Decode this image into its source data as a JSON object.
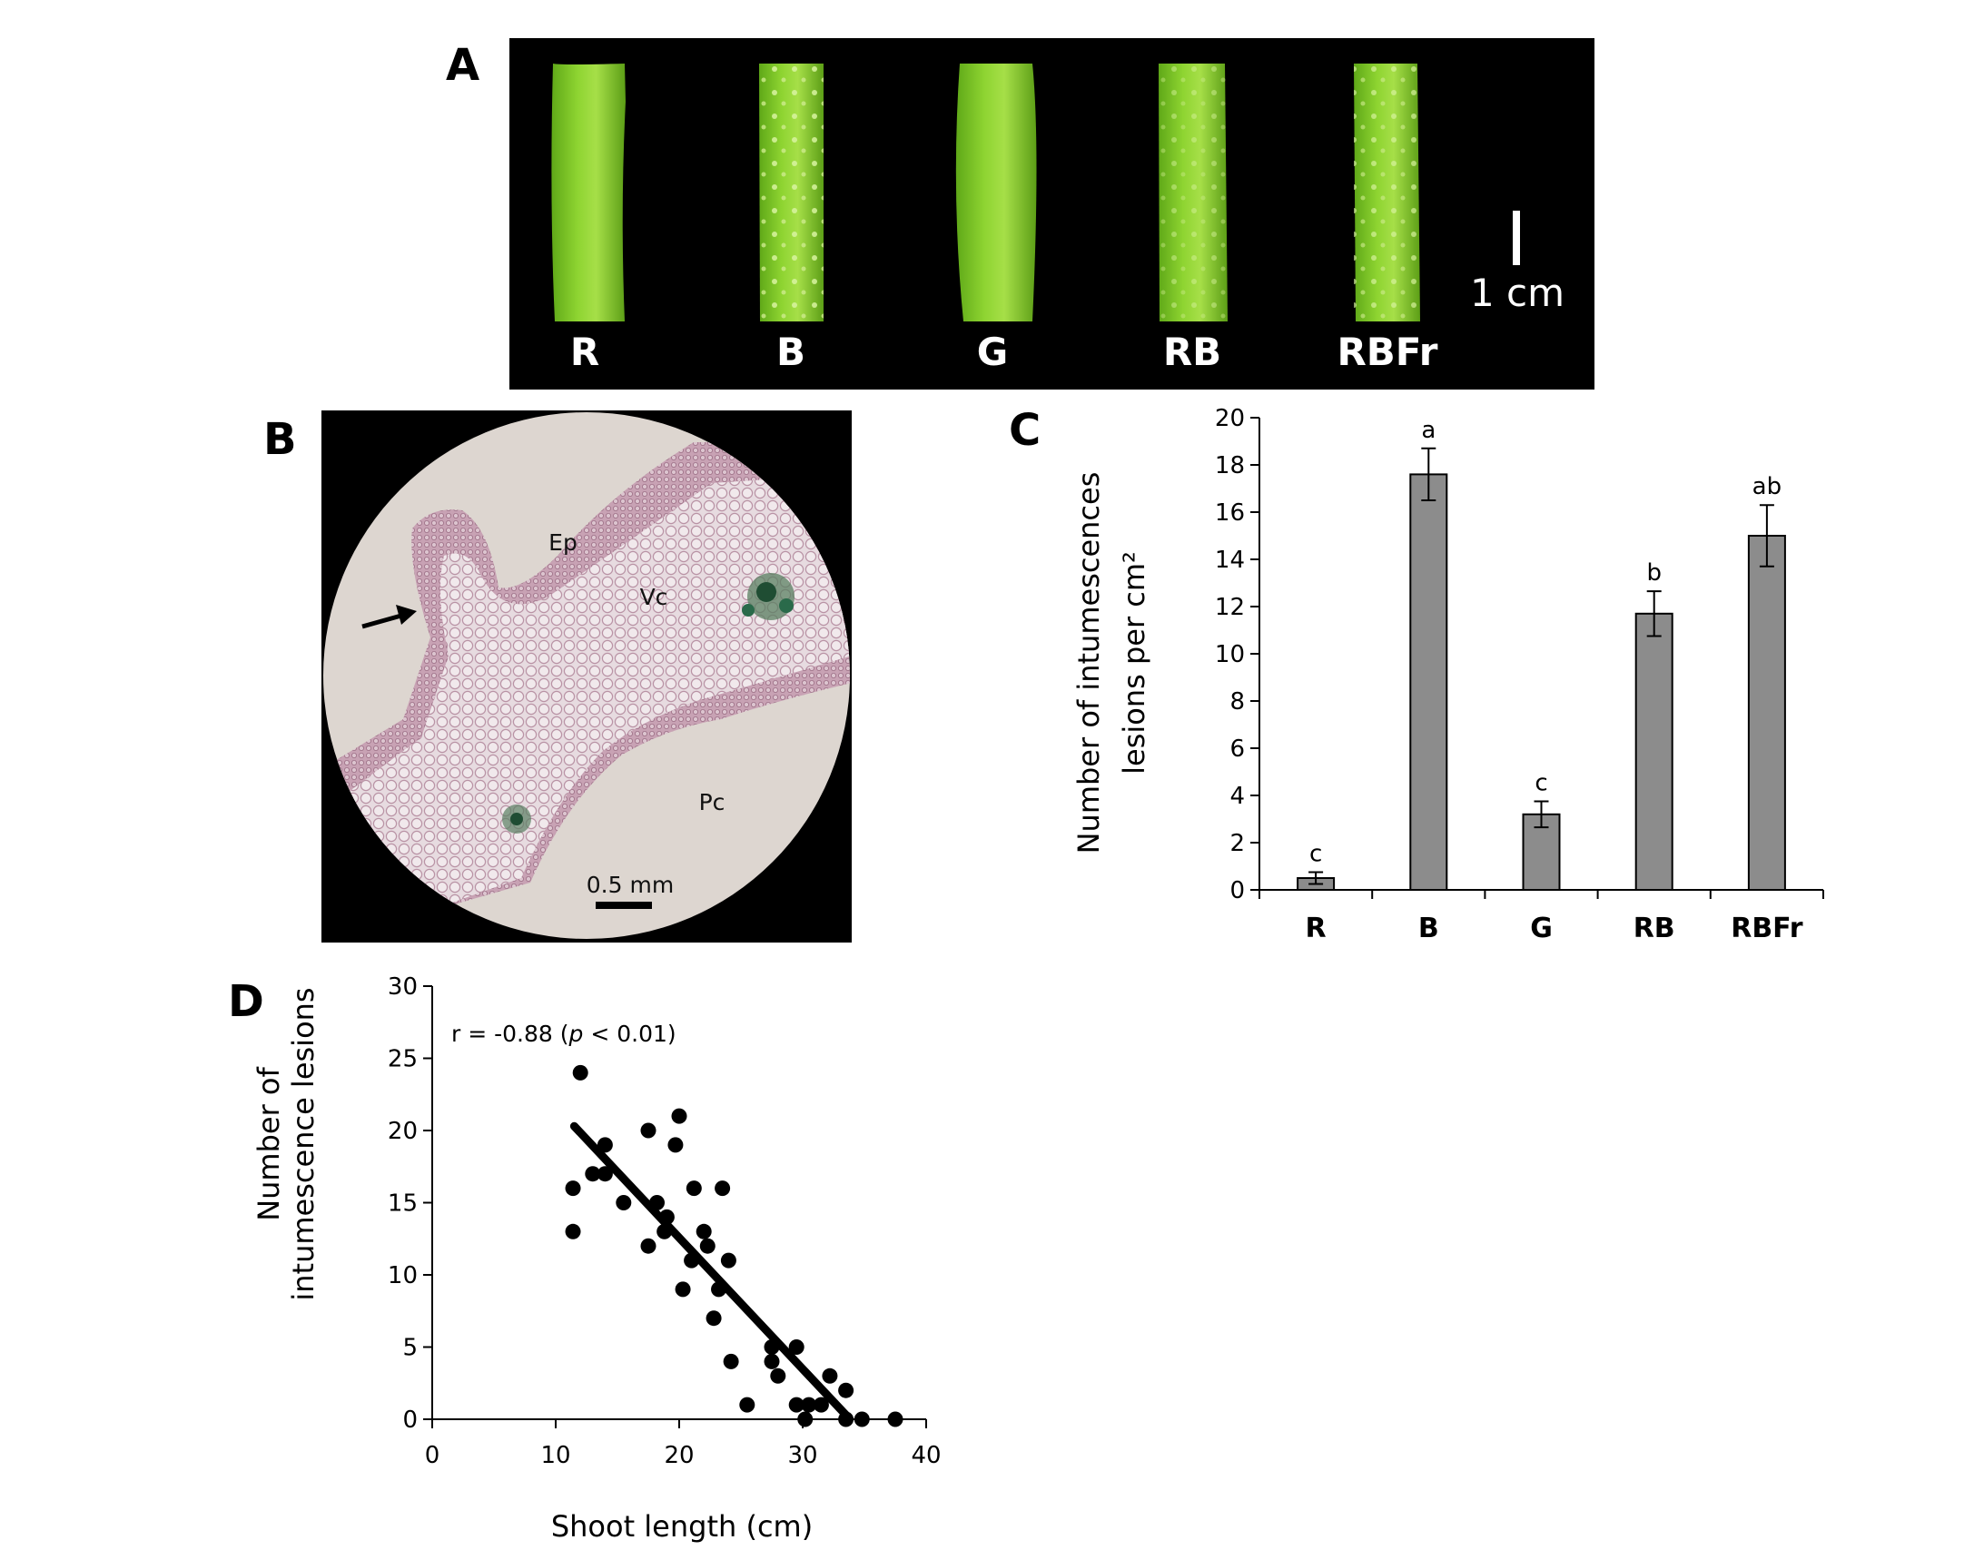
{
  "panels": {
    "a": "A",
    "b": "B",
    "c": "C",
    "d": "D"
  },
  "panel_a": {
    "stem_labels": [
      "R",
      "B",
      "G",
      "RB",
      "RBFr"
    ],
    "scale_bar": "1 cm",
    "colors": {
      "background": "#000000",
      "stem": "#86cc2c",
      "stem_light": "#a8dc4a"
    }
  },
  "panel_b": {
    "labels": [
      "Ep",
      "Vc",
      "Pc"
    ],
    "scale_bar": "0.5 mm",
    "colors": {
      "background": "#000000",
      "field": "#ddd5cf",
      "tissue": "#c8a7b3",
      "stain": "#2a6a4a"
    }
  },
  "chart_data": [
    {
      "type": "bar",
      "panel": "C",
      "categories": [
        "R",
        "B",
        "G",
        "RB",
        "RBFr"
      ],
      "values": [
        0.5,
        17.6,
        3.2,
        11.7,
        15.0
      ],
      "errors": [
        0.25,
        1.1,
        0.55,
        0.95,
        1.3
      ],
      "significance": [
        "c",
        "a",
        "c",
        "b",
        "ab"
      ],
      "ylabel_lines": [
        "Number of intumescences",
        "lesions per cm²"
      ],
      "yticks": [
        0,
        2,
        4,
        6,
        8,
        10,
        12,
        14,
        16,
        18,
        20
      ],
      "ylim": [
        0,
        20
      ],
      "bar_color": "#8c8c8c"
    },
    {
      "type": "scatter",
      "panel": "D",
      "xlabel": "Shoot length (cm)",
      "ylabel_lines": [
        "Number of",
        "intumescence lesions"
      ],
      "xticks": [
        0,
        10,
        20,
        30,
        40
      ],
      "yticks": [
        0,
        5,
        10,
        15,
        20,
        25,
        30
      ],
      "xlim": [
        0,
        40
      ],
      "ylim": [
        0,
        30
      ],
      "annotation": {
        "prefix": "r = -0.88 (",
        "p": "p",
        "suffix": " < 0.01)"
      },
      "trendline": {
        "x": [
          11.5,
          33.5
        ],
        "y": [
          20.3,
          0.3
        ]
      },
      "points": [
        [
          12,
          24
        ],
        [
          11.4,
          16
        ],
        [
          11.4,
          13
        ],
        [
          13,
          17
        ],
        [
          14,
          19
        ],
        [
          14,
          17
        ],
        [
          15.5,
          15
        ],
        [
          17.5,
          20
        ],
        [
          17.5,
          12
        ],
        [
          18.2,
          15
        ],
        [
          19,
          14
        ],
        [
          18.8,
          13
        ],
        [
          20,
          21
        ],
        [
          19.7,
          19
        ],
        [
          20.3,
          9
        ],
        [
          21,
          11
        ],
        [
          21.2,
          16
        ],
        [
          22,
          13
        ],
        [
          22.3,
          12
        ],
        [
          22.8,
          7
        ],
        [
          23.5,
          16
        ],
        [
          23.2,
          9
        ],
        [
          24,
          11
        ],
        [
          24.2,
          4
        ],
        [
          25.5,
          1
        ],
        [
          27.5,
          5
        ],
        [
          27.5,
          4
        ],
        [
          28,
          3
        ],
        [
          29.5,
          5
        ],
        [
          29.5,
          1
        ],
        [
          30.2,
          0
        ],
        [
          30.5,
          1
        ],
        [
          31.5,
          1
        ],
        [
          32.2,
          3
        ],
        [
          33.5,
          2
        ],
        [
          33.5,
          0
        ],
        [
          34.8,
          0
        ],
        [
          37.5,
          0
        ]
      ]
    }
  ]
}
